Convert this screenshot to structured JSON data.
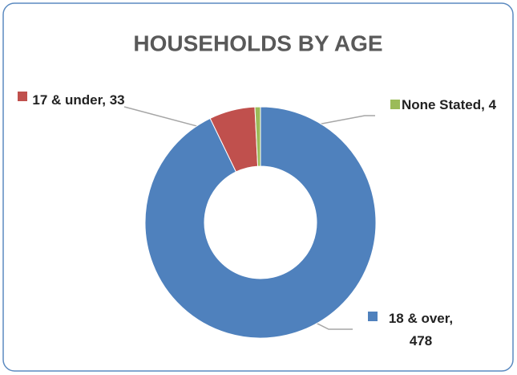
{
  "chart_data": {
    "type": "donut",
    "title": "HOUSEHOLDS BY AGE",
    "labels": [
      "18 & over, 478",
      "17 & under, 33",
      "None Stated, 4"
    ],
    "values": [
      478,
      33,
      4
    ],
    "colors": [
      "#4f81bd",
      "#c0504d",
      "#9bbb59"
    ]
  }
}
